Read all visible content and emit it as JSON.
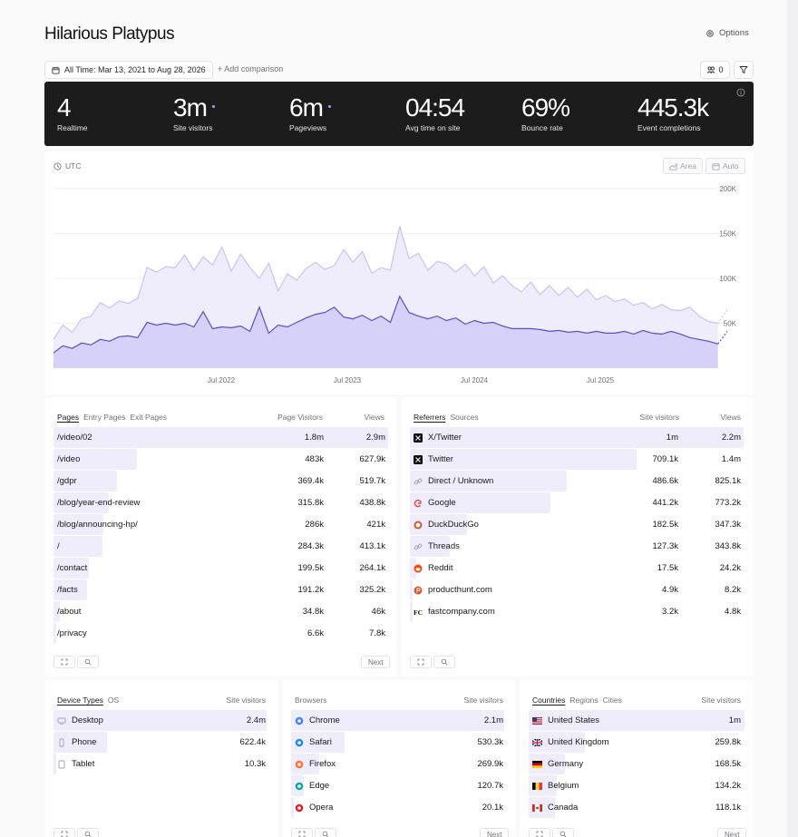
{
  "header": {
    "site_title": "Hilarious Platypus",
    "options_label": "Options",
    "date_range_label": "All Time: Mar 13, 2021 to Aug 28, 2026",
    "add_comparison_label": "+ Add comparison",
    "people_count": "0"
  },
  "stats": [
    {
      "value": "4",
      "label": "Realtime",
      "dot": false
    },
    {
      "value": "3m",
      "label": "Site visitors",
      "dot": true
    },
    {
      "value": "6m",
      "label": "Pageviews",
      "dot": true
    },
    {
      "value": "04:54",
      "label": "Avg time on site",
      "dot": false
    },
    {
      "value": "69%",
      "label": "Bounce rate",
      "dot": false
    },
    {
      "value": "445.3k",
      "label": "Event completions",
      "dot": false
    }
  ],
  "chart": {
    "timezone_label": "UTC",
    "area_button": "Area",
    "auto_button": "Auto",
    "y_ticks": [
      "200K",
      "150K",
      "100K",
      "50K"
    ],
    "x_ticks": [
      "Jul 2022",
      "Jul 2023",
      "Jul 2024",
      "Jul 2025"
    ],
    "colors": {
      "pageviews_fill": "#efedfc",
      "pageviews_line": "#c9c3f4",
      "visitors_fill": "#d6d1f8",
      "visitors_line": "#5b4fc4"
    }
  },
  "chart_data": {
    "type": "area",
    "ylim": [
      0,
      200000
    ],
    "x_ticks": [
      "Jul 2022",
      "Jul 2023",
      "Jul 2024",
      "Jul 2025"
    ],
    "series": [
      {
        "name": "Pageviews",
        "values": [
          32000,
          48000,
          40000,
          55000,
          58000,
          73000,
          67000,
          75000,
          72000,
          78000,
          112000,
          107000,
          113000,
          112000,
          126000,
          109000,
          124000,
          115000,
          135000,
          108000,
          127000,
          112000,
          100000,
          117000,
          86000,
          105000,
          98000,
          111000,
          118000,
          110000,
          114000,
          132000,
          118000,
          130000,
          106000,
          112000,
          109000,
          158000,
          122000,
          128000,
          109000,
          119000,
          116000,
          107000,
          116000,
          103000,
          113000,
          95000,
          103000,
          92000,
          85000,
          96000,
          82000,
          92000,
          81000,
          90000,
          79000,
          88000,
          76000,
          81000,
          74000,
          77000,
          70000,
          73000,
          66000,
          71000,
          65000,
          64000,
          68000,
          58000,
          52000,
          50000,
          65000
        ]
      },
      {
        "name": "Site visitors",
        "values": [
          17000,
          25000,
          22000,
          28000,
          26000,
          32000,
          30000,
          35000,
          36000,
          34000,
          51000,
          48000,
          50000,
          48000,
          50000,
          46000,
          63000,
          44000,
          46000,
          45000,
          47000,
          41000,
          68000,
          39000,
          48000,
          46000,
          51000,
          56000,
          60000,
          62000,
          68000,
          57000,
          55000,
          59000,
          53000,
          58000,
          51000,
          80000,
          62000,
          58000,
          55000,
          58000,
          53000,
          56000,
          49000,
          53000,
          50000,
          51000,
          47000,
          44000,
          44000,
          44000,
          43000,
          41000,
          42000,
          40000,
          41000,
          39000,
          41000,
          39000,
          39000,
          41000,
          38000,
          42000,
          39000,
          38000,
          41000,
          38000,
          34000,
          32000,
          30000,
          27000,
          41000
        ]
      }
    ]
  },
  "pages_card": {
    "tabs": [
      "Pages",
      "Entry Pages",
      "Exit Pages"
    ],
    "col1": "Page Visitors",
    "col2": "Views",
    "next_label": "Next",
    "rows": [
      {
        "label": "/video/02",
        "v1": "1.8m",
        "v2": "2.9m",
        "share": 1.0
      },
      {
        "label": "/video",
        "v1": "483k",
        "v2": "627.9k",
        "share": 0.25
      },
      {
        "label": "/gdpr",
        "v1": "369.4k",
        "v2": "519.7k",
        "share": 0.19
      },
      {
        "label": "/blog/year-end-review",
        "v1": "315.8k",
        "v2": "438.8k",
        "share": 0.165
      },
      {
        "label": "/blog/announcing-hp/",
        "v1": "286k",
        "v2": "421k",
        "share": 0.15
      },
      {
        "label": "/",
        "v1": "284.3k",
        "v2": "413.1k",
        "share": 0.145
      },
      {
        "label": "/contact",
        "v1": "199.5k",
        "v2": "264.1k",
        "share": 0.105
      },
      {
        "label": "/facts",
        "v1": "191.2k",
        "v2": "325.2k",
        "share": 0.1
      },
      {
        "label": "/about",
        "v1": "34.8k",
        "v2": "46k",
        "share": 0.02
      },
      {
        "label": "/privacy",
        "v1": "6.6k",
        "v2": "7.8k",
        "share": 0.005
      }
    ]
  },
  "referrers_card": {
    "tabs": [
      "Referrers",
      "Sources"
    ],
    "col1": "Site visitors",
    "col2": "Views",
    "rows": [
      {
        "label": "X/Twitter",
        "icon": "x-logo-icon",
        "v1": "1m",
        "v2": "2.2m",
        "share": 1.0
      },
      {
        "label": "Twitter",
        "icon": "x-logo-icon",
        "v1": "709.1k",
        "v2": "1.4m",
        "share": 0.68
      },
      {
        "label": "Direct / Unknown",
        "icon": "link-icon",
        "v1": "486.6k",
        "v2": "825.1k",
        "share": 0.47
      },
      {
        "label": "Google",
        "icon": "google-icon",
        "v1": "441.2k",
        "v2": "773.2k",
        "share": 0.42
      },
      {
        "label": "DuckDuckGo",
        "icon": "duckduckgo-icon",
        "v1": "182.5k",
        "v2": "347.3k",
        "share": 0.17
      },
      {
        "label": "Threads",
        "icon": "link-icon",
        "v1": "127.3k",
        "v2": "343.8k",
        "share": 0.12
      },
      {
        "label": "Reddit",
        "icon": "reddit-icon",
        "v1": "17.5k",
        "v2": "24.2k",
        "share": 0.02
      },
      {
        "label": "producthunt.com",
        "icon": "producthunt-icon",
        "v1": "4.9k",
        "v2": "8.2k",
        "share": 0.005
      },
      {
        "label": "fastcompany.com",
        "icon": "fastcompany-icon",
        "v1": "3.2k",
        "v2": "4.8k",
        "share": 0.003
      }
    ]
  },
  "devices_card": {
    "tabs": [
      "Device Types",
      "OS"
    ],
    "col1": "Site visitors",
    "rows": [
      {
        "label": "Desktop",
        "v1": "2.4m",
        "share": 1.0
      },
      {
        "label": "Phone",
        "v1": "622.4k",
        "share": 0.25
      },
      {
        "label": "Tablet",
        "v1": "10.3k",
        "share": 0.01
      }
    ]
  },
  "browsers_card": {
    "tabs": [
      "Browsers"
    ],
    "col1": "Site visitors",
    "next_label": "Next",
    "rows": [
      {
        "label": "Chrome",
        "v1": "2.1m",
        "share": 1.0,
        "color": "#4285f4"
      },
      {
        "label": "Safari",
        "v1": "530.3k",
        "share": 0.25,
        "color": "#1e88e5"
      },
      {
        "label": "Firefox",
        "v1": "269.9k",
        "share": 0.13,
        "color": "#ff7139"
      },
      {
        "label": "Edge",
        "v1": "120.7k",
        "share": 0.06,
        "color": "#0fa6a0"
      },
      {
        "label": "Opera",
        "v1": "20.1k",
        "share": 0.01,
        "color": "#e0202b"
      }
    ]
  },
  "countries_card": {
    "tabs": [
      "Countries",
      "Regions",
      "Cities"
    ],
    "col1": "Site visitors",
    "next_label": "Next",
    "rows": [
      {
        "label": "United States",
        "v1": "1m",
        "share": 1.0
      },
      {
        "label": "United Kingdom",
        "v1": "259.8k",
        "share": 0.26
      },
      {
        "label": "Germany",
        "v1": "168.5k",
        "share": 0.17
      },
      {
        "label": "Belgium",
        "v1": "134.2k",
        "share": 0.13
      },
      {
        "label": "Canada",
        "v1": "118.1k",
        "share": 0.12
      }
    ]
  }
}
